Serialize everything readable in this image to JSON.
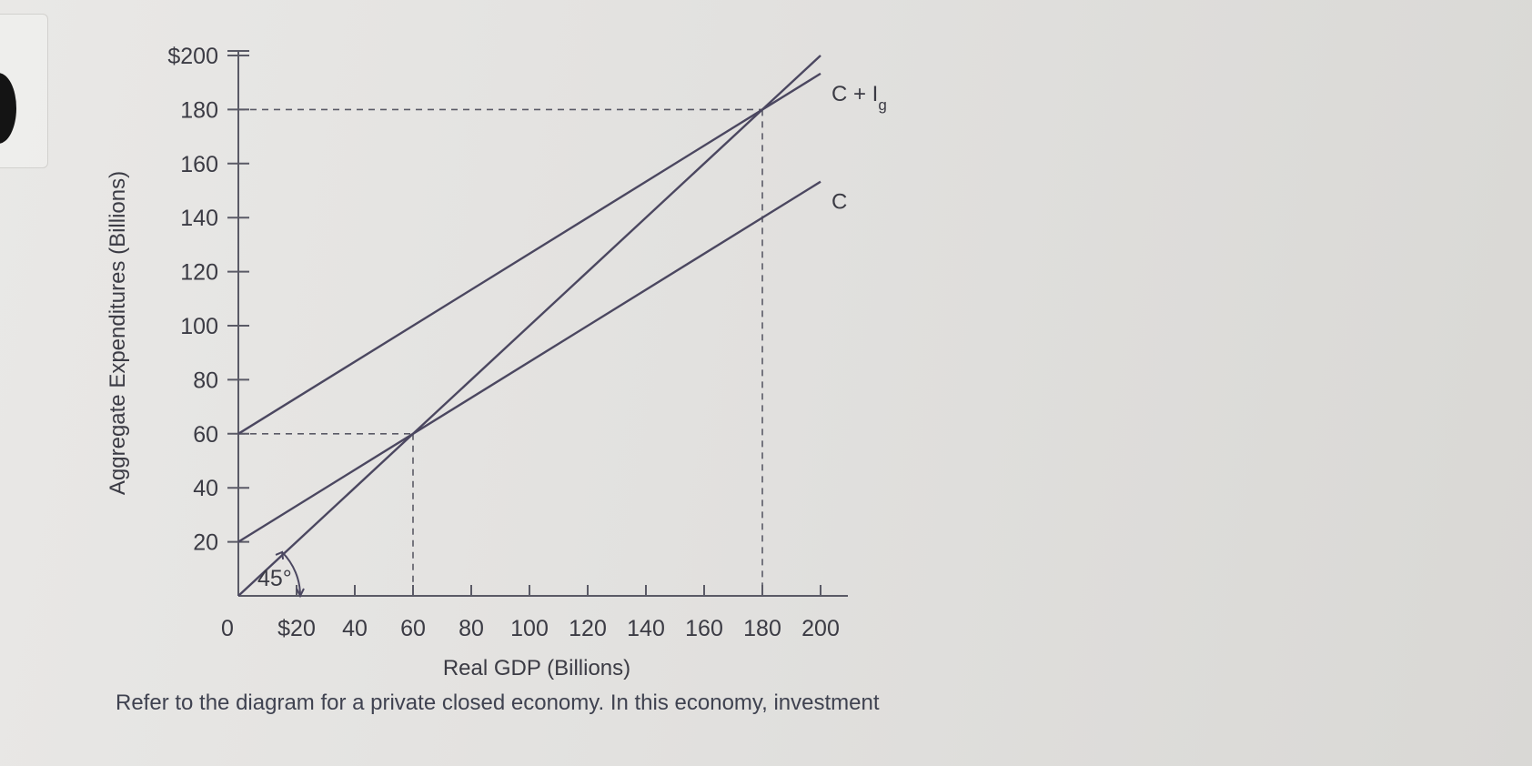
{
  "question": {
    "caption": "Refer to the diagram for a private closed economy. In this economy, investment"
  },
  "chart_data": {
    "type": "line",
    "title": "",
    "xlabel": "Real GDP (Billions)",
    "ylabel": "Aggregate Expenditures (Billions)",
    "xlim": [
      0,
      200
    ],
    "ylim": [
      0,
      200
    ],
    "x_ticks": [
      {
        "value": 0,
        "label": "0"
      },
      {
        "value": 20,
        "label": "$20"
      },
      {
        "value": 40,
        "label": "40"
      },
      {
        "value": 60,
        "label": "60"
      },
      {
        "value": 80,
        "label": "80"
      },
      {
        "value": 100,
        "label": "100"
      },
      {
        "value": 120,
        "label": "120"
      },
      {
        "value": 140,
        "label": "140"
      },
      {
        "value": 160,
        "label": "160"
      },
      {
        "value": 180,
        "label": "180"
      },
      {
        "value": 200,
        "label": "200"
      }
    ],
    "y_ticks": [
      {
        "value": 20,
        "label": "20"
      },
      {
        "value": 40,
        "label": "40"
      },
      {
        "value": 60,
        "label": "60"
      },
      {
        "value": 80,
        "label": "80"
      },
      {
        "value": 100,
        "label": "100"
      },
      {
        "value": 120,
        "label": "120"
      },
      {
        "value": 140,
        "label": "140"
      },
      {
        "value": 160,
        "label": "160"
      },
      {
        "value": 180,
        "label": "180"
      },
      {
        "value": 200,
        "label": "$200"
      }
    ],
    "series": [
      {
        "name": "C + Ig",
        "label_main": "C + I",
        "label_sub": "g",
        "x": [
          0,
          200
        ],
        "y": [
          60,
          193.3
        ]
      },
      {
        "name": "C",
        "label_main": "C",
        "label_sub": "",
        "x": [
          0,
          200
        ],
        "y": [
          20,
          153.3
        ]
      },
      {
        "name": "",
        "x": [
          0,
          200
        ],
        "y": [
          0,
          200
        ]
      }
    ],
    "guides": [
      {
        "x": 60,
        "y": 60
      },
      {
        "x": 180,
        "y": 180
      }
    ],
    "annotations": [
      {
        "text": "45°",
        "x": 0,
        "y": 0
      }
    ],
    "grid": false,
    "colors": {
      "line": "#4b4760",
      "axis": "#5a5a66",
      "text": "#3b3b44"
    }
  }
}
